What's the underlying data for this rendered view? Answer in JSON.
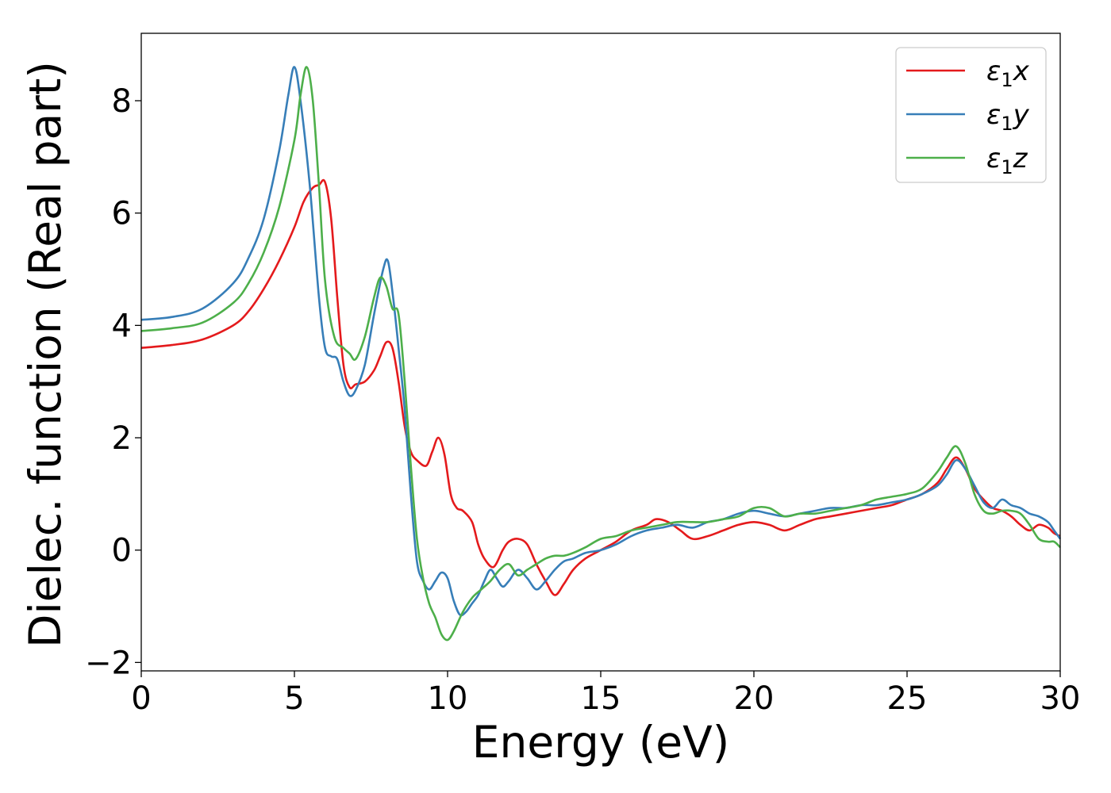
{
  "chart_data": {
    "type": "line",
    "title": "",
    "xlabel": "Energy (eV)",
    "ylabel": "Dielec. function (Real part)",
    "xlim": [
      0,
      30
    ],
    "ylim": [
      -2.15,
      9.2
    ],
    "xticks": [
      0,
      5,
      10,
      15,
      20,
      25,
      30
    ],
    "xtick_labels": [
      "0",
      "5",
      "10",
      "15",
      "20",
      "25",
      "30"
    ],
    "yticks": [
      -2,
      0,
      2,
      4,
      6,
      8
    ],
    "ytick_labels": [
      "−2",
      "0",
      "2",
      "4",
      "6",
      "8"
    ],
    "grid": false,
    "legend_position": "top-right",
    "series": [
      {
        "name": "ε₁x",
        "legend_base": "ε",
        "legend_sub": "1",
        "legend_var": "x",
        "color": "#e41a1c",
        "x": [
          0,
          1,
          2,
          3,
          3.5,
          4,
          4.5,
          5,
          5.3,
          5.6,
          5.8,
          6.0,
          6.2,
          6.4,
          6.6,
          6.8,
          7.0,
          7.3,
          7.6,
          7.8,
          8.0,
          8.2,
          8.4,
          8.6,
          8.8,
          9.0,
          9.3,
          9.5,
          9.7,
          9.9,
          10.1,
          10.3,
          10.5,
          10.8,
          11.0,
          11.2,
          11.5,
          11.8,
          12.0,
          12.3,
          12.6,
          12.9,
          13.2,
          13.5,
          13.8,
          14.1,
          14.5,
          15,
          15.5,
          16,
          16.5,
          16.8,
          17.2,
          17.6,
          18,
          18.5,
          19,
          19.5,
          20,
          20.5,
          21,
          21.5,
          22,
          22.5,
          23,
          23.5,
          24,
          24.5,
          25,
          25.5,
          26,
          26.3,
          26.6,
          26.9,
          27.2,
          27.5,
          27.8,
          28.1,
          28.4,
          28.7,
          29,
          29.3,
          29.6,
          29.8,
          30
        ],
        "y": [
          3.6,
          3.65,
          3.75,
          4.0,
          4.25,
          4.65,
          5.15,
          5.75,
          6.2,
          6.45,
          6.5,
          6.55,
          5.9,
          4.5,
          3.3,
          2.9,
          2.95,
          3.0,
          3.2,
          3.45,
          3.7,
          3.6,
          3.0,
          2.2,
          1.75,
          1.6,
          1.5,
          1.75,
          2.0,
          1.7,
          1.0,
          0.75,
          0.7,
          0.5,
          0.1,
          -0.15,
          -0.3,
          0.0,
          0.15,
          0.2,
          0.1,
          -0.25,
          -0.55,
          -0.8,
          -0.6,
          -0.35,
          -0.15,
          0.0,
          0.15,
          0.35,
          0.45,
          0.55,
          0.5,
          0.35,
          0.2,
          0.25,
          0.35,
          0.45,
          0.5,
          0.45,
          0.35,
          0.45,
          0.55,
          0.6,
          0.65,
          0.7,
          0.75,
          0.8,
          0.9,
          1.0,
          1.2,
          1.45,
          1.65,
          1.45,
          1.1,
          0.9,
          0.75,
          0.7,
          0.6,
          0.45,
          0.35,
          0.45,
          0.4,
          0.3,
          0.25
        ]
      },
      {
        "name": "ε₁y",
        "legend_base": "ε",
        "legend_sub": "1",
        "legend_var": "y",
        "color": "#377eb8",
        "x": [
          0,
          1,
          2,
          3,
          3.5,
          4,
          4.5,
          4.8,
          5.0,
          5.2,
          5.5,
          5.8,
          6.0,
          6.2,
          6.4,
          6.6,
          6.8,
          7.0,
          7.3,
          7.6,
          7.9,
          8.05,
          8.2,
          8.4,
          8.6,
          8.8,
          9.0,
          9.2,
          9.4,
          9.6,
          9.8,
          10.0,
          10.2,
          10.4,
          10.6,
          10.8,
          11.0,
          11.2,
          11.4,
          11.6,
          11.8,
          12.0,
          12.3,
          12.6,
          12.9,
          13.2,
          13.5,
          13.8,
          14.1,
          14.5,
          15,
          15.5,
          16,
          16.5,
          17,
          17.5,
          18,
          18.5,
          19,
          19.5,
          20,
          20.5,
          21,
          21.5,
          22,
          22.5,
          23,
          23.5,
          24,
          24.5,
          25,
          25.5,
          26,
          26.3,
          26.6,
          26.9,
          27.2,
          27.5,
          27.8,
          28.1,
          28.4,
          28.7,
          29,
          29.3,
          29.6,
          29.8,
          30
        ],
        "y": [
          4.1,
          4.15,
          4.3,
          4.75,
          5.2,
          5.9,
          7.1,
          8.1,
          8.6,
          8.0,
          6.5,
          4.5,
          3.6,
          3.45,
          3.4,
          3.0,
          2.75,
          2.85,
          3.3,
          4.2,
          5.0,
          5.15,
          4.6,
          3.6,
          2.5,
          1.0,
          -0.2,
          -0.55,
          -0.7,
          -0.55,
          -0.4,
          -0.5,
          -0.9,
          -1.15,
          -1.1,
          -0.95,
          -0.8,
          -0.55,
          -0.35,
          -0.5,
          -0.65,
          -0.55,
          -0.35,
          -0.5,
          -0.7,
          -0.55,
          -0.35,
          -0.2,
          -0.15,
          -0.05,
          0.0,
          0.1,
          0.25,
          0.35,
          0.4,
          0.45,
          0.4,
          0.5,
          0.55,
          0.65,
          0.7,
          0.65,
          0.6,
          0.65,
          0.7,
          0.75,
          0.75,
          0.8,
          0.8,
          0.85,
          0.9,
          1.0,
          1.15,
          1.35,
          1.6,
          1.45,
          1.15,
          0.85,
          0.75,
          0.9,
          0.8,
          0.75,
          0.65,
          0.6,
          0.5,
          0.35,
          0.2
        ]
      },
      {
        "name": "ε₁z",
        "legend_base": "ε",
        "legend_sub": "1",
        "legend_var": "z",
        "color": "#4daf4a",
        "x": [
          0,
          1,
          2,
          3,
          3.5,
          4,
          4.5,
          5.0,
          5.2,
          5.4,
          5.6,
          5.8,
          6.0,
          6.3,
          6.6,
          6.8,
          7.0,
          7.3,
          7.6,
          7.8,
          8.0,
          8.2,
          8.4,
          8.6,
          8.8,
          9.0,
          9.2,
          9.4,
          9.6,
          9.8,
          10.0,
          10.2,
          10.5,
          10.8,
          11.1,
          11.4,
          11.7,
          12.0,
          12.3,
          12.6,
          12.9,
          13.2,
          13.5,
          13.8,
          14.1,
          14.5,
          15,
          15.5,
          16,
          16.5,
          17,
          17.5,
          18,
          18.5,
          19,
          19.5,
          20,
          20.5,
          21,
          21.5,
          22,
          22.5,
          23,
          23.5,
          24,
          24.5,
          25,
          25.5,
          26,
          26.3,
          26.6,
          26.9,
          27.2,
          27.5,
          27.8,
          28.1,
          28.4,
          28.7,
          29,
          29.3,
          29.6,
          29.8,
          30
        ],
        "y": [
          3.9,
          3.95,
          4.05,
          4.4,
          4.75,
          5.3,
          6.1,
          7.3,
          8.1,
          8.6,
          8.0,
          6.5,
          4.8,
          3.8,
          3.6,
          3.5,
          3.4,
          3.8,
          4.5,
          4.85,
          4.7,
          4.3,
          4.2,
          3.0,
          1.5,
          0.2,
          -0.5,
          -0.95,
          -1.2,
          -1.5,
          -1.6,
          -1.45,
          -1.1,
          -0.85,
          -0.7,
          -0.55,
          -0.35,
          -0.25,
          -0.45,
          -0.35,
          -0.25,
          -0.15,
          -0.1,
          -0.1,
          -0.05,
          0.05,
          0.2,
          0.25,
          0.35,
          0.4,
          0.45,
          0.5,
          0.5,
          0.5,
          0.55,
          0.6,
          0.75,
          0.75,
          0.6,
          0.65,
          0.65,
          0.7,
          0.75,
          0.8,
          0.9,
          0.95,
          1.0,
          1.1,
          1.4,
          1.65,
          1.85,
          1.55,
          1.0,
          0.7,
          0.65,
          0.7,
          0.7,
          0.65,
          0.45,
          0.2,
          0.15,
          0.15,
          0.05
        ]
      }
    ]
  }
}
